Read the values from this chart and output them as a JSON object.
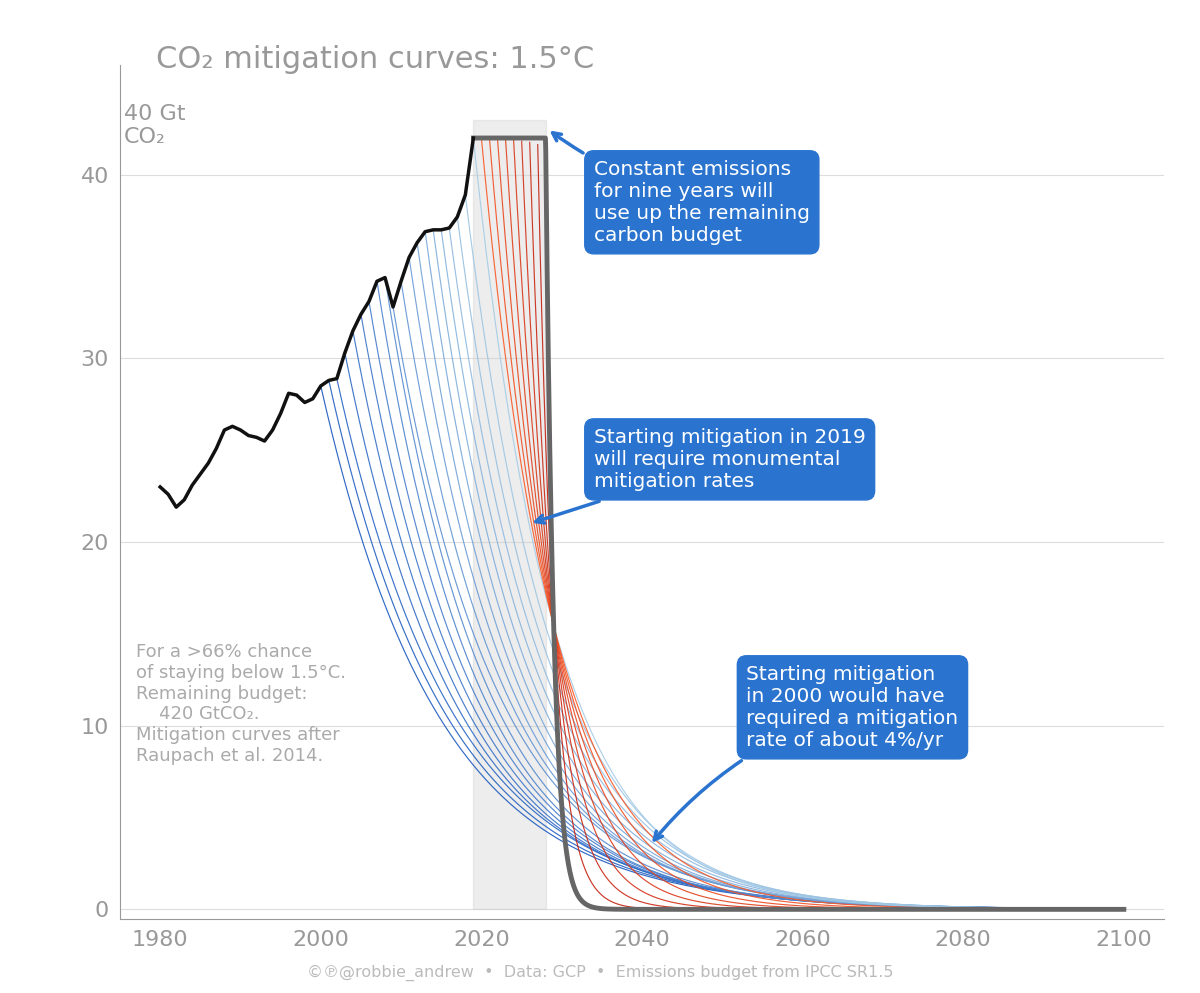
{
  "title": "CO₂ mitigation curves: 1.5°C",
  "xlabel_years": [
    1980,
    2000,
    2020,
    2040,
    2060,
    2080,
    2100
  ],
  "yticks": [
    0,
    10,
    20,
    30,
    40
  ],
  "xlim": [
    1975,
    2105
  ],
  "ylim": [
    -0.5,
    46
  ],
  "background_color": "#ffffff",
  "plot_bg_color": "#ffffff",
  "title_color": "#999999",
  "axis_color": "#999999",
  "grid_color": "#dddddd",
  "historical_color": "#111111",
  "thick_curve_color": "#666666",
  "annotation_box_color": "#2a74d0",
  "annotation_text_color": "#ffffff",
  "footer_text": "©℗@robbie_andrew  •  Data: GCP  •  Emissions budget from IPCC SR1.5",
  "info_text": "For a >66% chance\nof staying below 1.5°C.\nRemaining budget:\n    420 GtCO₂.\nMitigation curves after\nRaupach et al. 2014.",
  "annotation1_text": "Constant emissions\nfor nine years will\nuse up the remaining\ncarbon budget",
  "annotation2_text": "Starting mitigation in 2019\nwill require monumental\nmitigation rates",
  "annotation3_text": "Starting mitigation\nin 2000 would have\nrequired a mitigation\nrate of about 4%/yr",
  "hist_years": [
    1980,
    1981,
    1982,
    1983,
    1984,
    1985,
    1986,
    1987,
    1988,
    1989,
    1990,
    1991,
    1992,
    1993,
    1994,
    1995,
    1996,
    1997,
    1998,
    1999,
    2000,
    2001,
    2002,
    2003,
    2004,
    2005,
    2006,
    2007,
    2008,
    2009,
    2010,
    2011,
    2012,
    2013,
    2014,
    2015,
    2016,
    2017,
    2018,
    2019
  ],
  "hist_emissions": [
    23.0,
    22.6,
    21.9,
    22.3,
    23.1,
    23.7,
    24.3,
    25.1,
    26.1,
    26.3,
    26.1,
    25.8,
    25.7,
    25.5,
    26.1,
    27.0,
    28.1,
    28.0,
    27.6,
    27.8,
    28.5,
    28.8,
    28.9,
    30.3,
    31.5,
    32.4,
    33.1,
    34.2,
    34.4,
    32.8,
    34.2,
    35.5,
    36.3,
    36.9,
    37.0,
    37.0,
    37.1,
    37.7,
    38.9,
    42.0
  ],
  "budget": 420,
  "peak_emission": 42.0,
  "peak_year": 2019,
  "constant_end_year": 2028,
  "blue_start_years": [
    2000,
    2001,
    2002,
    2003,
    2004,
    2005,
    2006,
    2007,
    2008,
    2009,
    2010,
    2011,
    2012,
    2013,
    2014,
    2015,
    2016,
    2017,
    2018,
    2019
  ],
  "red_start_years": [
    2020,
    2021,
    2022,
    2023,
    2024,
    2025,
    2026,
    2027,
    2028
  ]
}
